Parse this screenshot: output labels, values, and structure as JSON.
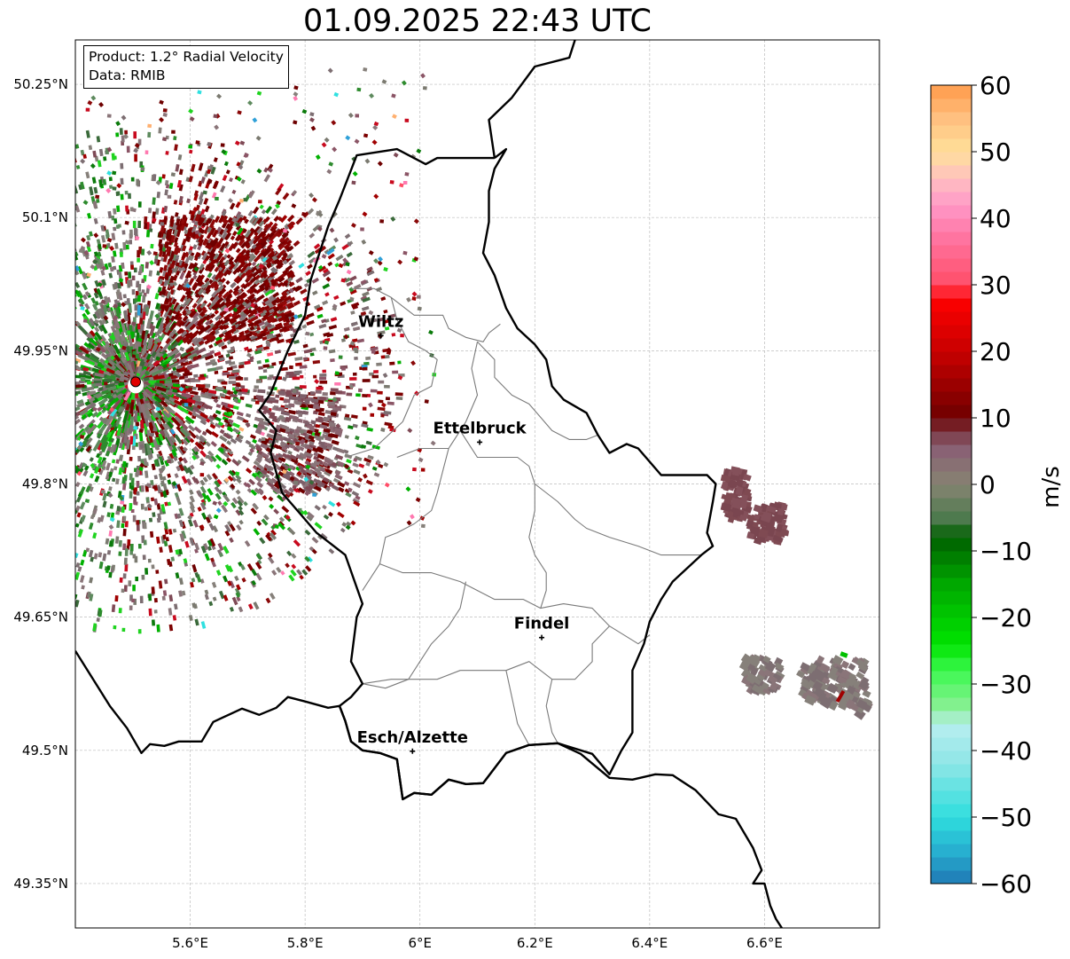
{
  "title": "01.09.2025 22:43 UTC",
  "info": {
    "product": "Product: 1.2° Radial Velocity",
    "source": "Data: RMIB"
  },
  "map": {
    "extent": {
      "lon": [
        5.4,
        6.8
      ],
      "lat": [
        49.3,
        50.3
      ]
    },
    "lat_ticks": [
      {
        "value": 50.25,
        "label": "50.25°N"
      },
      {
        "value": 50.1,
        "label": "50.1°N"
      },
      {
        "value": 49.95,
        "label": "49.95°N"
      },
      {
        "value": 49.8,
        "label": "49.8°N"
      },
      {
        "value": 49.65,
        "label": "49.65°N"
      },
      {
        "value": 49.5,
        "label": "49.5°N"
      },
      {
        "value": 49.35,
        "label": "49.35°N"
      }
    ],
    "lon_ticks": [
      {
        "value": 5.6,
        "label": "5.6°E"
      },
      {
        "value": 5.8,
        "label": "5.8°E"
      },
      {
        "value": 6.0,
        "label": "6°E"
      },
      {
        "value": 6.2,
        "label": "6.2°E"
      },
      {
        "value": 6.4,
        "label": "6.4°E"
      },
      {
        "value": 6.6,
        "label": "6.6°E"
      }
    ],
    "radar_site": {
      "lon": 5.505,
      "lat": 49.915
    },
    "cities": [
      {
        "name": "Wiltz",
        "lon": 5.932,
        "lat": 49.967
      },
      {
        "name": "Ettelbruck",
        "lon": 6.104,
        "lat": 49.847
      },
      {
        "name": "Findel",
        "lon": 6.212,
        "lat": 49.627
      },
      {
        "name": "Esch/Alzette",
        "lon": 5.987,
        "lat": 49.499
      }
    ],
    "borders": {
      "color": "#000000",
      "country_outline": [
        [
          5.4,
          49.612
        ],
        [
          5.46,
          49.55
        ],
        [
          5.49,
          49.525
        ],
        [
          5.515,
          49.497
        ],
        [
          5.53,
          49.507
        ],
        [
          5.555,
          49.505
        ],
        [
          5.58,
          49.51
        ],
        [
          5.62,
          49.51
        ],
        [
          5.64,
          49.532
        ],
        [
          5.69,
          49.547
        ],
        [
          5.72,
          49.54
        ],
        [
          5.75,
          49.548
        ],
        [
          5.77,
          49.56
        ],
        [
          5.8,
          49.555
        ],
        [
          5.84,
          49.548
        ],
        [
          5.86,
          49.55
        ],
        [
          5.87,
          49.533
        ],
        [
          5.88,
          49.51
        ],
        [
          5.9,
          49.5
        ],
        [
          5.93,
          49.497
        ],
        [
          5.96,
          49.49
        ],
        [
          5.97,
          49.445
        ],
        [
          5.99,
          49.452
        ],
        [
          6.02,
          49.45
        ],
        [
          6.05,
          49.467
        ],
        [
          6.08,
          49.462
        ],
        [
          6.11,
          49.463
        ],
        [
          6.15,
          49.497
        ],
        [
          6.19,
          49.506
        ],
        [
          6.24,
          49.508
        ],
        [
          6.28,
          49.496
        ],
        [
          6.33,
          49.469
        ],
        [
          6.37,
          49.467
        ],
        [
          6.41,
          49.473
        ],
        [
          6.44,
          49.472
        ],
        [
          6.48,
          49.455
        ],
        [
          6.52,
          49.428
        ],
        [
          6.55,
          49.423
        ],
        [
          6.58,
          49.39
        ],
        [
          6.595,
          49.365
        ],
        [
          6.58,
          49.35
        ],
        [
          6.6,
          49.35
        ],
        [
          6.61,
          49.325
        ],
        [
          6.62,
          49.31
        ],
        [
          6.63,
          49.3
        ]
      ],
      "lux_outline": [
        [
          6.13,
          50.167
        ],
        [
          6.15,
          50.177
        ],
        [
          6.13,
          50.155
        ],
        [
          6.12,
          50.13
        ],
        [
          6.12,
          50.095
        ],
        [
          6.11,
          50.06
        ],
        [
          6.13,
          50.035
        ],
        [
          6.15,
          49.998
        ],
        [
          6.17,
          49.975
        ],
        [
          6.2,
          49.957
        ],
        [
          6.22,
          49.94
        ],
        [
          6.23,
          49.91
        ],
        [
          6.25,
          49.895
        ],
        [
          6.29,
          49.88
        ],
        [
          6.31,
          49.855
        ],
        [
          6.33,
          49.835
        ],
        [
          6.36,
          49.845
        ],
        [
          6.38,
          49.84
        ],
        [
          6.42,
          49.81
        ],
        [
          6.48,
          49.81
        ],
        [
          6.5,
          49.81
        ],
        [
          6.515,
          49.8
        ],
        [
          6.51,
          49.78
        ],
        [
          6.5,
          49.745
        ],
        [
          6.51,
          49.73
        ],
        [
          6.49,
          49.72
        ],
        [
          6.44,
          49.69
        ],
        [
          6.42,
          49.67
        ],
        [
          6.4,
          49.645
        ],
        [
          6.39,
          49.62
        ],
        [
          6.37,
          49.59
        ],
        [
          6.37,
          49.52
        ],
        [
          6.35,
          49.499
        ],
        [
          6.33,
          49.473
        ],
        [
          6.3,
          49.496
        ],
        [
          6.28,
          49.5
        ],
        [
          6.24,
          49.508
        ],
        [
          6.19,
          49.506
        ],
        [
          6.15,
          49.497
        ],
        [
          6.11,
          49.463
        ],
        [
          6.08,
          49.462
        ],
        [
          6.05,
          49.467
        ],
        [
          6.02,
          49.45
        ],
        [
          5.99,
          49.452
        ],
        [
          5.97,
          49.445
        ],
        [
          5.96,
          49.49
        ],
        [
          5.93,
          49.497
        ],
        [
          5.9,
          49.5
        ],
        [
          5.88,
          49.51
        ],
        [
          5.87,
          49.533
        ],
        [
          5.86,
          49.55
        ],
        [
          5.88,
          49.56
        ],
        [
          5.9,
          49.575
        ],
        [
          5.88,
          49.6
        ],
        [
          5.89,
          49.65
        ],
        [
          5.9,
          49.665
        ],
        [
          5.87,
          49.72
        ],
        [
          5.84,
          49.735
        ],
        [
          5.82,
          49.745
        ],
        [
          5.8,
          49.76
        ],
        [
          5.76,
          49.79
        ],
        [
          5.74,
          49.835
        ],
        [
          5.75,
          49.86
        ],
        [
          5.72,
          49.883
        ],
        [
          5.74,
          49.902
        ],
        [
          5.77,
          49.95
        ],
        [
          5.8,
          49.99
        ],
        [
          5.81,
          50.03
        ],
        [
          5.84,
          50.09
        ],
        [
          5.86,
          50.12
        ],
        [
          5.89,
          50.17
        ],
        [
          5.96,
          50.177
        ],
        [
          6.01,
          50.16
        ],
        [
          6.03,
          50.167
        ],
        [
          6.07,
          50.167
        ],
        [
          6.13,
          50.167
        ]
      ],
      "germany_north": [
        [
          6.13,
          50.167
        ],
        [
          6.12,
          50.21
        ],
        [
          6.16,
          50.235
        ],
        [
          6.2,
          50.27
        ],
        [
          6.26,
          50.28
        ],
        [
          6.27,
          50.3
        ]
      ]
    },
    "cantons": [
      [
        [
          5.88,
          50.02
        ],
        [
          5.92,
          50.02
        ],
        [
          5.95,
          50.01
        ],
        [
          5.99,
          49.99
        ],
        [
          6.02,
          49.99
        ],
        [
          6.04,
          49.99
        ],
        [
          6.05,
          49.975
        ],
        [
          6.08,
          49.965
        ],
        [
          6.11,
          49.96
        ],
        [
          6.12,
          49.97
        ],
        [
          6.14,
          49.98
        ]
      ],
      [
        [
          5.95,
          50.01
        ],
        [
          5.96,
          49.985
        ],
        [
          5.98,
          49.96
        ],
        [
          6.01,
          49.95
        ],
        [
          6.03,
          49.94
        ],
        [
          6.02,
          49.91
        ],
        [
          5.99,
          49.9
        ],
        [
          5.97,
          49.87
        ],
        [
          5.92,
          49.84
        ],
        [
          5.87,
          49.83
        ]
      ],
      [
        [
          6.1,
          49.96
        ],
        [
          6.09,
          49.93
        ],
        [
          6.1,
          49.9
        ],
        [
          6.08,
          49.87
        ],
        [
          6.07,
          49.86
        ],
        [
          6.05,
          49.84
        ],
        [
          6.0,
          49.84
        ],
        [
          5.96,
          49.83
        ]
      ],
      [
        [
          6.1,
          49.96
        ],
        [
          6.13,
          49.94
        ],
        [
          6.13,
          49.92
        ],
        [
          6.16,
          49.9
        ],
        [
          6.19,
          49.89
        ],
        [
          6.21,
          49.875
        ],
        [
          6.23,
          49.86
        ],
        [
          6.26,
          49.85
        ],
        [
          6.29,
          49.85
        ],
        [
          6.31,
          49.855
        ]
      ],
      [
        [
          6.05,
          49.84
        ],
        [
          6.04,
          49.815
        ],
        [
          6.03,
          49.79
        ],
        [
          6.02,
          49.77
        ],
        [
          5.99,
          49.755
        ],
        [
          5.96,
          49.745
        ],
        [
          5.94,
          49.74
        ],
        [
          5.93,
          49.71
        ],
        [
          5.92,
          49.7
        ],
        [
          5.9,
          49.68
        ]
      ],
      [
        [
          6.07,
          49.86
        ],
        [
          6.1,
          49.83
        ],
        [
          6.14,
          49.83
        ],
        [
          6.17,
          49.83
        ],
        [
          6.19,
          49.82
        ],
        [
          6.2,
          49.8
        ],
        [
          6.22,
          49.79
        ],
        [
          6.24,
          49.78
        ],
        [
          6.27,
          49.76
        ],
        [
          6.29,
          49.75
        ],
        [
          6.33,
          49.74
        ],
        [
          6.38,
          49.73
        ],
        [
          6.42,
          49.72
        ],
        [
          6.46,
          49.72
        ],
        [
          6.49,
          49.72
        ]
      ],
      [
        [
          6.2,
          49.8
        ],
        [
          6.2,
          49.77
        ],
        [
          6.19,
          49.74
        ],
        [
          6.2,
          49.72
        ],
        [
          6.22,
          49.7
        ],
        [
          6.22,
          49.68
        ],
        [
          6.21,
          49.66
        ]
      ],
      [
        [
          5.93,
          49.71
        ],
        [
          5.97,
          49.7
        ],
        [
          6.02,
          49.7
        ],
        [
          6.07,
          49.69
        ],
        [
          6.1,
          49.68
        ],
        [
          6.13,
          49.67
        ],
        [
          6.18,
          49.67
        ],
        [
          6.21,
          49.66
        ],
        [
          6.25,
          49.665
        ],
        [
          6.3,
          49.66
        ],
        [
          6.33,
          49.64
        ],
        [
          6.38,
          49.62
        ],
        [
          6.4,
          49.63
        ]
      ],
      [
        [
          6.08,
          49.69
        ],
        [
          6.07,
          49.66
        ],
        [
          6.05,
          49.64
        ],
        [
          6.02,
          49.62
        ],
        [
          6.0,
          49.6
        ],
        [
          5.98,
          49.58
        ],
        [
          5.94,
          49.57
        ],
        [
          5.9,
          49.575
        ]
      ],
      [
        [
          5.9,
          49.575
        ],
        [
          5.95,
          49.58
        ],
        [
          5.99,
          49.58
        ],
        [
          6.03,
          49.58
        ],
        [
          6.07,
          49.59
        ],
        [
          6.1,
          49.59
        ],
        [
          6.15,
          49.59
        ],
        [
          6.19,
          49.6
        ],
        [
          6.23,
          49.58
        ],
        [
          6.27,
          49.58
        ],
        [
          6.3,
          49.6
        ],
        [
          6.3,
          49.62
        ],
        [
          6.33,
          49.64
        ]
      ],
      [
        [
          6.15,
          49.59
        ],
        [
          6.16,
          49.56
        ],
        [
          6.17,
          49.53
        ],
        [
          6.19,
          49.506
        ]
      ],
      [
        [
          6.23,
          49.58
        ],
        [
          6.22,
          49.55
        ],
        [
          6.23,
          49.52
        ],
        [
          6.24,
          49.508
        ]
      ]
    ]
  },
  "colorbar": {
    "label": "m/s",
    "min": -60,
    "max": 60,
    "ticks": [
      {
        "value": 60,
        "label": "60"
      },
      {
        "value": 50,
        "label": "50"
      },
      {
        "value": 40,
        "label": "40"
      },
      {
        "value": 30,
        "label": "30"
      },
      {
        "value": 20,
        "label": "20"
      },
      {
        "value": 10,
        "label": "10"
      },
      {
        "value": 0,
        "label": "0"
      },
      {
        "value": -10,
        "label": "−10"
      },
      {
        "value": -20,
        "label": "−20"
      },
      {
        "value": -30,
        "label": "−30"
      },
      {
        "value": -40,
        "label": "−40"
      },
      {
        "value": -50,
        "label": "−50"
      },
      {
        "value": -60,
        "label": "−60"
      }
    ],
    "color_stops": [
      {
        "value": -60,
        "color": "#1f78b4"
      },
      {
        "value": -55,
        "color": "#27b0d0"
      },
      {
        "value": -50,
        "color": "#2fdede"
      },
      {
        "value": -42,
        "color": "#8ee6e6"
      },
      {
        "value": -36,
        "color": "#b8eef0"
      },
      {
        "value": -34,
        "color": "#90ef9a"
      },
      {
        "value": -28,
        "color": "#3cf850"
      },
      {
        "value": -24,
        "color": "#00e400"
      },
      {
        "value": -15,
        "color": "#00a800"
      },
      {
        "value": -8,
        "color": "#006000"
      },
      {
        "value": -5,
        "color": "#4e7a4e"
      },
      {
        "value": 0,
        "color": "#868472"
      },
      {
        "value": 5,
        "color": "#896274"
      },
      {
        "value": 8,
        "color": "#7c3a46"
      },
      {
        "value": 10,
        "color": "#6e0000"
      },
      {
        "value": 20,
        "color": "#c80000"
      },
      {
        "value": 28,
        "color": "#ff0000"
      },
      {
        "value": 30,
        "color": "#ff4d68"
      },
      {
        "value": 38,
        "color": "#ff7aa8"
      },
      {
        "value": 42,
        "color": "#ff99c8"
      },
      {
        "value": 46,
        "color": "#ffc0c0"
      },
      {
        "value": 50,
        "color": "#ffe09a"
      },
      {
        "value": 55,
        "color": "#ffc080"
      },
      {
        "value": 60,
        "color": "#ff9a4a"
      }
    ]
  },
  "echo_colors": {
    "positive": [
      "#6e0000",
      "#7c0000",
      "#8a0808",
      "#a00000",
      "#c80a1e",
      "#8b5566",
      "#7f4a56"
    ],
    "neutral": [
      "#86807a",
      "#7d6e72",
      "#8a7579",
      "#7b7a70"
    ],
    "negative": [
      "#2e8b2e",
      "#0a7a0a",
      "#3a6a3a",
      "#00b000",
      "#1fd31f",
      "#5e8a5e"
    ],
    "outlier": [
      "#ff4d68",
      "#ff79b0",
      "#ffb070",
      "#2fa0d8",
      "#30e0e0"
    ],
    "clutter": "#7f4a52"
  }
}
